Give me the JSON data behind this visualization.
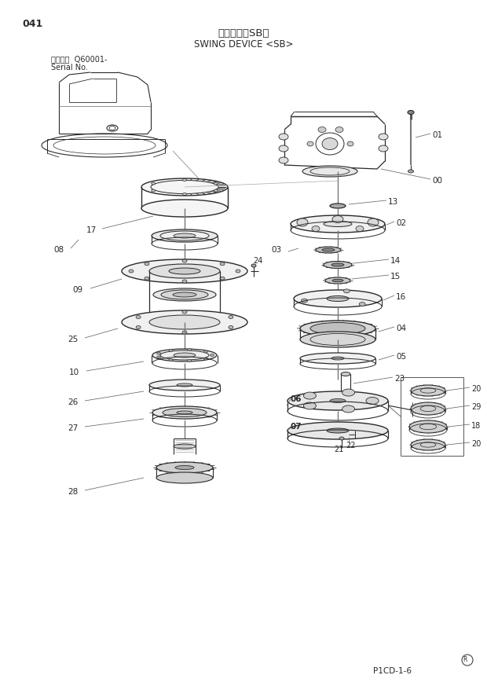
{
  "page_num": "041",
  "title_jp": "旋回装置＜SB＞",
  "title_en": "SWING DEVICE <SB>",
  "serial_line1": "適用号機  Q60001-",
  "serial_line2": "Serial No.",
  "footer": "P1CD-1-6",
  "bg_color": "#ffffff",
  "lc": "#2a2a2a",
  "lc2": "#444444"
}
